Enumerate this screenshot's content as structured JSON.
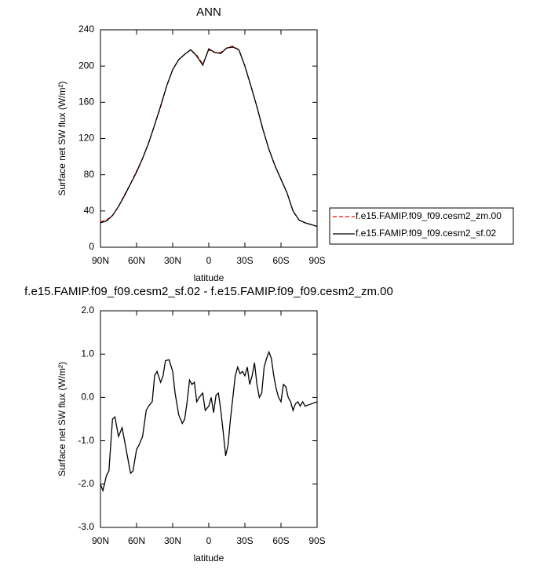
{
  "chart_data": [
    {
      "type": "line",
      "title": "ANN",
      "xlabel": "latitude",
      "ylabel": "Surface net SW flux (W/m²)",
      "x": [
        90,
        85,
        80,
        75,
        70,
        65,
        60,
        55,
        50,
        45,
        40,
        35,
        30,
        25,
        20,
        15,
        10,
        5,
        0,
        -5,
        -10,
        -15,
        -20,
        -25,
        -30,
        -35,
        -40,
        -45,
        -50,
        -55,
        -60,
        -65,
        -70,
        -75,
        -80,
        -85,
        -90
      ],
      "series": [
        {
          "name": "f.e15.FAMIP.f09_f09.cesm2_zm.00",
          "color": "#ff0000",
          "linestyle": "dashed",
          "values": [
            28,
            30,
            35,
            45,
            58,
            70,
            84,
            98,
            115,
            135,
            155,
            178,
            196,
            207,
            213,
            218,
            212,
            202,
            218,
            215,
            215,
            220,
            222,
            218,
            200,
            178,
            155,
            130,
            108,
            90,
            75,
            60,
            40,
            30,
            27,
            25,
            23
          ]
        },
        {
          "name": "f.e15.FAMIP.f09_f09.cesm2_sf.02",
          "color": "#000000",
          "linestyle": "solid",
          "values": [
            27,
            29,
            35,
            45,
            57,
            70,
            83,
            98,
            115,
            135,
            156,
            178,
            196,
            207,
            213,
            218,
            211,
            201,
            219,
            215,
            214,
            220,
            221,
            218,
            200,
            178,
            155,
            130,
            108,
            90,
            75,
            60,
            40,
            30,
            27,
            25,
            23
          ]
        }
      ],
      "xlim": [
        90,
        -90
      ],
      "xticks": [
        {
          "value": 90,
          "label": "90N"
        },
        {
          "value": 60,
          "label": "60N"
        },
        {
          "value": 30,
          "label": "30N"
        },
        0,
        {
          "value": -30,
          "label": "30S"
        },
        {
          "value": -60,
          "label": "60S"
        },
        {
          "value": -90,
          "label": "90S"
        }
      ],
      "ylim": [
        0,
        240
      ],
      "yticks": [
        0,
        40,
        80,
        120,
        160,
        200,
        240
      ],
      "legend": "right"
    },
    {
      "type": "line",
      "title": "f.e15.FAMIP.f09_f09.cesm2_sf.02 - f.e15.FAMIP.f09_f09.cesm2_zm.00",
      "xlabel": "latitude",
      "ylabel": "Surface net SW flux (W/m²)",
      "x": [
        90,
        88,
        85,
        83,
        80,
        78,
        75,
        72,
        70,
        68,
        65,
        63,
        60,
        58,
        55,
        52,
        50,
        47,
        45,
        43,
        40,
        38,
        36,
        33,
        30,
        28,
        25,
        22,
        20,
        18,
        16,
        14,
        12,
        10,
        8,
        5,
        3,
        0,
        -2,
        -4,
        -6,
        -8,
        -10,
        -12,
        -14,
        -16,
        -18,
        -20,
        -22,
        -24,
        -26,
        -28,
        -30,
        -32,
        -34,
        -36,
        -38,
        -40,
        -42,
        -44,
        -46,
        -48,
        -50,
        -52,
        -54,
        -56,
        -58,
        -60,
        -62,
        -64,
        -66,
        -68,
        -70,
        -72,
        -74,
        -76,
        -78,
        -80,
        -85,
        -90
      ],
      "series": [
        {
          "color": "#000000",
          "linestyle": "solid",
          "values": [
            -2.0,
            -2.15,
            -1.8,
            -1.7,
            -0.5,
            -0.45,
            -0.9,
            -0.7,
            -1.0,
            -1.3,
            -1.75,
            -1.7,
            -1.2,
            -1.1,
            -0.9,
            -0.3,
            -0.2,
            -0.1,
            0.5,
            0.6,
            0.35,
            0.5,
            0.85,
            0.87,
            0.6,
            0.1,
            -0.4,
            -0.6,
            -0.5,
            -0.1,
            0.4,
            0.3,
            0.35,
            -0.1,
            0.0,
            0.1,
            -0.3,
            -0.2,
            0.0,
            -0.35,
            0.05,
            0.1,
            -0.3,
            -0.8,
            -1.35,
            -1.1,
            -0.5,
            0.0,
            0.5,
            0.7,
            0.55,
            0.6,
            0.5,
            0.7,
            0.3,
            0.5,
            0.8,
            0.3,
            0.0,
            0.1,
            0.7,
            0.9,
            1.05,
            0.9,
            0.5,
            0.2,
            0.0,
            -0.1,
            0.3,
            0.25,
            0.0,
            -0.1,
            -0.3,
            -0.15,
            -0.1,
            -0.2,
            -0.1,
            -0.2,
            -0.15,
            -0.1
          ]
        }
      ],
      "xlim": [
        90,
        -90
      ],
      "xticks": [
        {
          "value": 90,
          "label": "90N"
        },
        {
          "value": 60,
          "label": "60N"
        },
        {
          "value": 30,
          "label": "30N"
        },
        0,
        {
          "value": -30,
          "label": "30S"
        },
        {
          "value": -60,
          "label": "60S"
        },
        {
          "value": -90,
          "label": "90S"
        }
      ],
      "ylim": [
        -3,
        2
      ],
      "yticks": [
        {
          "value": -3,
          "label": "-3.0"
        },
        {
          "value": -2,
          "label": "-2.0"
        },
        {
          "value": -1,
          "label": "-1.0"
        },
        {
          "value": 0,
          "label": "0.0"
        },
        {
          "value": 1,
          "label": "1.0"
        },
        {
          "value": 2,
          "label": "2.0"
        }
      ]
    }
  ]
}
